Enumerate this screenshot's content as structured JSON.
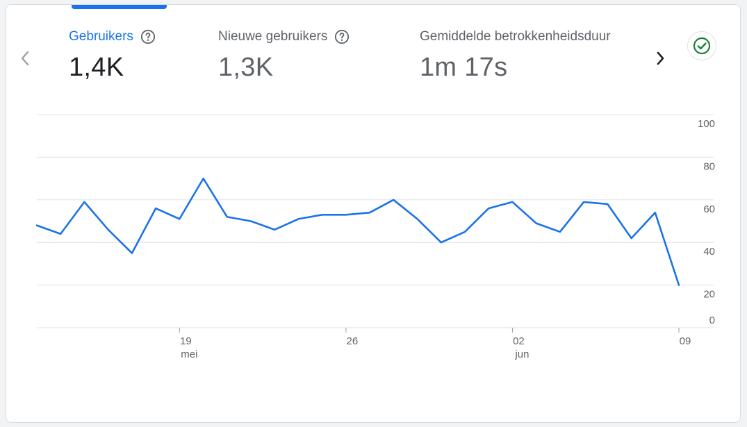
{
  "metrics": [
    {
      "label": "Gebruikers",
      "value": "1,4K",
      "active": true
    },
    {
      "label": "Nieuwe gebruikers",
      "value": "1,3K",
      "active": false
    },
    {
      "label": "Gemiddelde betrokkenheidsduur",
      "value": "1m 17s",
      "active": false
    }
  ],
  "icons": {
    "prev": "chevron-left-icon",
    "next": "chevron-right-icon",
    "help": "help-circle-icon",
    "status": "check-circle-icon"
  },
  "colors": {
    "accent": "#1a73e8",
    "line": "#1a73e8",
    "status": "#188038",
    "grid": "#e0e0e0"
  },
  "chart_data": {
    "type": "line",
    "y_ticks": [
      "100",
      "80",
      "60",
      "40",
      "20",
      "0"
    ],
    "ylim": [
      0,
      100
    ],
    "x_ticks": [
      {
        "day": "19",
        "month": "mei",
        "index": 6
      },
      {
        "day": "26",
        "month": "",
        "index": 13
      },
      {
        "day": "02",
        "month": "jun",
        "index": 20
      },
      {
        "day": "09",
        "month": "",
        "index": 27
      }
    ],
    "grid": true,
    "series": [
      {
        "values": [
          48,
          44,
          59,
          46,
          35,
          56,
          51,
          70,
          52,
          50,
          46,
          51,
          53,
          53,
          54,
          60,
          51,
          40,
          45,
          56,
          59,
          49,
          45,
          59,
          58,
          42,
          54,
          20
        ]
      }
    ]
  }
}
